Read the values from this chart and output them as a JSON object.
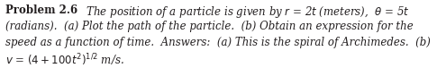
{
  "line1_bold": "Problem 2.6",
  "line1_italic": "  The position of a particle is given by r = 2t (meters), θ = 5t",
  "line2": "(radians).  (a) Plot the path of the particle.  (b) Obtain an expression for the",
  "line3": "speed as a function of time.  Answers:  (a) This is the spiral of Archimedes.  (b)",
  "line4_italic": "v = (4 + 100t²)¹ᐟ² m/s.",
  "background_color": "#ffffff",
  "text_color": "#231f20",
  "font_size": 8.5,
  "fig_width": 4.95,
  "fig_height": 0.76,
  "dpi": 100
}
